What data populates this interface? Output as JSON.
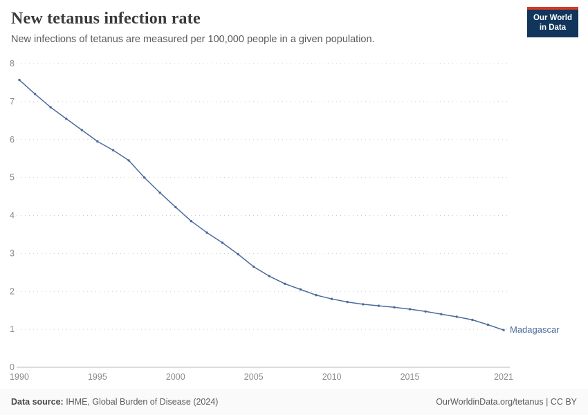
{
  "header": {
    "title": "New tetanus infection rate",
    "subtitle": "New infections of tetanus are measured per 100,000 people in a given population.",
    "logo_line1": "Our World",
    "logo_line2": "in Data"
  },
  "chart_data": {
    "type": "line",
    "entity": "Madagascar",
    "title": "New tetanus infection rate",
    "subtitle": "New infections of tetanus are measured per 100,000 people in a given population.",
    "xlabel": "",
    "ylabel": "",
    "x": [
      1990,
      1991,
      1992,
      1993,
      1994,
      1995,
      1996,
      1997,
      1998,
      1999,
      2000,
      2001,
      2002,
      2003,
      2004,
      2005,
      2006,
      2007,
      2008,
      2009,
      2010,
      2011,
      2012,
      2013,
      2014,
      2015,
      2016,
      2017,
      2018,
      2019,
      2020,
      2021
    ],
    "series": [
      {
        "name": "Madagascar",
        "values": [
          7.57,
          7.2,
          6.85,
          6.55,
          6.25,
          5.95,
          5.72,
          5.45,
          5.0,
          4.6,
          4.22,
          3.85,
          3.55,
          3.28,
          2.98,
          2.65,
          2.4,
          2.2,
          2.05,
          1.9,
          1.8,
          1.72,
          1.66,
          1.62,
          1.58,
          1.53,
          1.47,
          1.4,
          1.33,
          1.25,
          1.12,
          0.98
        ]
      }
    ],
    "ylim": [
      0,
      8
    ],
    "yticks": [
      0,
      1,
      2,
      3,
      4,
      5,
      6,
      7,
      8
    ],
    "xticks": [
      1990,
      1995,
      2000,
      2005,
      2010,
      2015,
      2021
    ],
    "grid": true,
    "gridline_style": "dotted",
    "legend_position": "end-of-line",
    "line_color": "#4c6a9c",
    "tick_label_color": "#8a8a8a"
  },
  "footer": {
    "source_label": "Data source:",
    "source_text": " IHME, Global Burden of Disease (2024)",
    "credit": "OurWorldinData.org/tetanus | CC BY"
  }
}
